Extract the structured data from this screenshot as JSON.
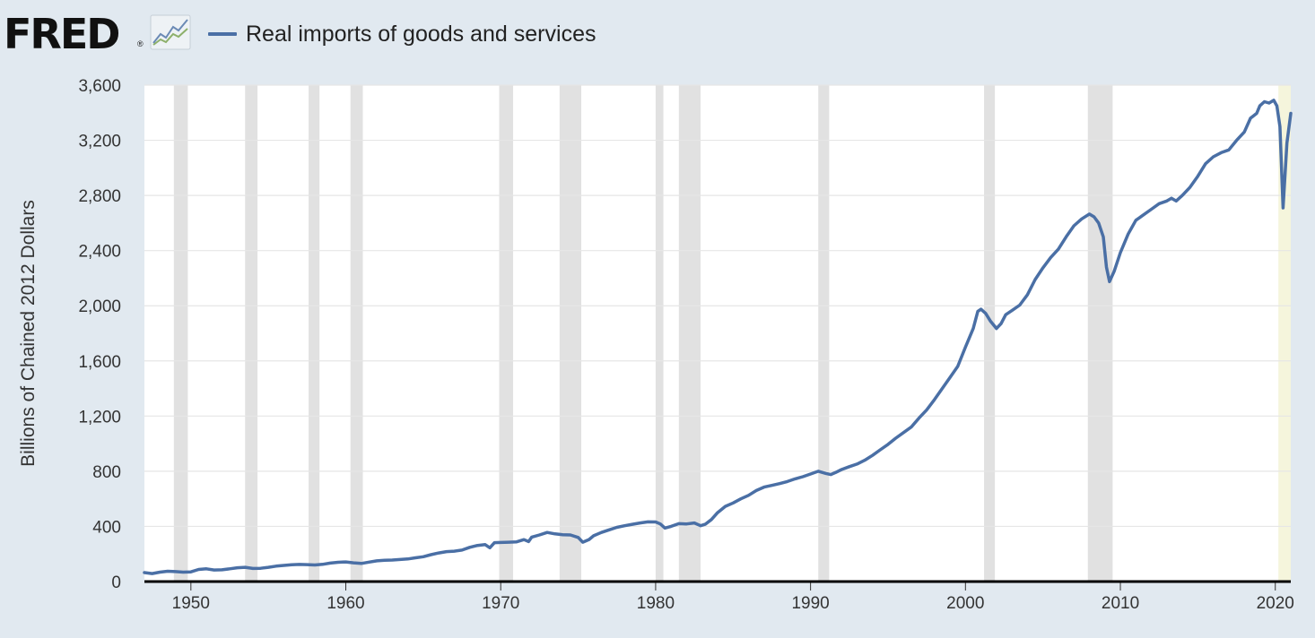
{
  "header": {
    "logo": "FRED",
    "logo_mark": "®"
  },
  "chart_data": {
    "type": "line",
    "title": "",
    "xlabel": "",
    "ylabel": "Billions of Chained 2012 Dollars",
    "xlim": [
      1947,
      2021
    ],
    "ylim": [
      0,
      3600
    ],
    "grid": true,
    "legend_position": "top-left",
    "y_ticks": [
      0,
      400,
      800,
      1200,
      1600,
      2000,
      2400,
      2800,
      3200,
      3600
    ],
    "y_tick_labels": [
      "0",
      "400",
      "800",
      "1,200",
      "1,600",
      "2,000",
      "2,400",
      "2,800",
      "3,200",
      "3,600"
    ],
    "x_ticks": [
      1950,
      1960,
      1970,
      1980,
      1990,
      2000,
      2010,
      2020
    ],
    "x_tick_labels": [
      "1950",
      "1960",
      "1970",
      "1980",
      "1990",
      "2000",
      "2010",
      "2020"
    ],
    "series": [
      {
        "name": "Real imports of goods and services",
        "color": "#4a6fa5",
        "points": [
          [
            1947.0,
            65
          ],
          [
            1947.5,
            58
          ],
          [
            1948.0,
            68
          ],
          [
            1948.5,
            75
          ],
          [
            1949.0,
            72
          ],
          [
            1949.5,
            68
          ],
          [
            1950.0,
            70
          ],
          [
            1950.5,
            88
          ],
          [
            1951.0,
            92
          ],
          [
            1951.5,
            84
          ],
          [
            1952.0,
            85
          ],
          [
            1952.5,
            92
          ],
          [
            1953.0,
            100
          ],
          [
            1953.5,
            103
          ],
          [
            1954.0,
            95
          ],
          [
            1954.5,
            96
          ],
          [
            1955.0,
            103
          ],
          [
            1955.5,
            112
          ],
          [
            1956.0,
            117
          ],
          [
            1956.5,
            122
          ],
          [
            1957.0,
            124
          ],
          [
            1957.5,
            123
          ],
          [
            1958.0,
            120
          ],
          [
            1958.5,
            125
          ],
          [
            1959.0,
            134
          ],
          [
            1959.5,
            140
          ],
          [
            1960.0,
            142
          ],
          [
            1960.5,
            136
          ],
          [
            1961.0,
            131
          ],
          [
            1961.5,
            141
          ],
          [
            1962.0,
            150
          ],
          [
            1962.5,
            154
          ],
          [
            1963.0,
            156
          ],
          [
            1963.5,
            160
          ],
          [
            1964.0,
            164
          ],
          [
            1964.5,
            172
          ],
          [
            1965.0,
            180
          ],
          [
            1965.5,
            195
          ],
          [
            1966.0,
            207
          ],
          [
            1966.5,
            217
          ],
          [
            1967.0,
            220
          ],
          [
            1967.5,
            228
          ],
          [
            1968.0,
            248
          ],
          [
            1968.5,
            262
          ],
          [
            1969.0,
            268
          ],
          [
            1969.3,
            245
          ],
          [
            1969.6,
            282
          ],
          [
            1970.0,
            283
          ],
          [
            1970.5,
            285
          ],
          [
            1971.0,
            287
          ],
          [
            1971.5,
            304
          ],
          [
            1971.8,
            290
          ],
          [
            1972.0,
            322
          ],
          [
            1972.5,
            338
          ],
          [
            1973.0,
            356
          ],
          [
            1973.5,
            346
          ],
          [
            1974.0,
            340
          ],
          [
            1974.5,
            338
          ],
          [
            1975.0,
            320
          ],
          [
            1975.3,
            285
          ],
          [
            1975.7,
            305
          ],
          [
            1976.0,
            332
          ],
          [
            1976.5,
            356
          ],
          [
            1977.0,
            375
          ],
          [
            1977.5,
            393
          ],
          [
            1978.0,
            405
          ],
          [
            1978.5,
            415
          ],
          [
            1979.0,
            425
          ],
          [
            1979.5,
            433
          ],
          [
            1980.0,
            432
          ],
          [
            1980.3,
            418
          ],
          [
            1980.6,
            388
          ],
          [
            1981.0,
            400
          ],
          [
            1981.5,
            420
          ],
          [
            1982.0,
            418
          ],
          [
            1982.5,
            425
          ],
          [
            1982.9,
            405
          ],
          [
            1983.2,
            415
          ],
          [
            1983.6,
            450
          ],
          [
            1984.0,
            500
          ],
          [
            1984.5,
            545
          ],
          [
            1985.0,
            570
          ],
          [
            1985.5,
            600
          ],
          [
            1986.0,
            625
          ],
          [
            1986.5,
            660
          ],
          [
            1987.0,
            685
          ],
          [
            1987.5,
            697
          ],
          [
            1988.0,
            710
          ],
          [
            1988.5,
            725
          ],
          [
            1989.0,
            745
          ],
          [
            1989.5,
            760
          ],
          [
            1990.0,
            780
          ],
          [
            1990.5,
            800
          ],
          [
            1991.0,
            784
          ],
          [
            1991.3,
            776
          ],
          [
            1991.6,
            790
          ],
          [
            1992.0,
            812
          ],
          [
            1992.5,
            833
          ],
          [
            1993.0,
            852
          ],
          [
            1993.5,
            880
          ],
          [
            1994.0,
            915
          ],
          [
            1994.5,
            955
          ],
          [
            1995.0,
            995
          ],
          [
            1995.5,
            1040
          ],
          [
            1996.0,
            1080
          ],
          [
            1996.5,
            1120
          ],
          [
            1997.0,
            1185
          ],
          [
            1997.5,
            1245
          ],
          [
            1998.0,
            1320
          ],
          [
            1998.5,
            1400
          ],
          [
            1999.0,
            1480
          ],
          [
            1999.5,
            1560
          ],
          [
            2000.0,
            1700
          ],
          [
            2000.5,
            1835
          ],
          [
            2000.8,
            1960
          ],
          [
            2001.0,
            1975
          ],
          [
            2001.3,
            1945
          ],
          [
            2001.6,
            1890
          ],
          [
            2002.0,
            1835
          ],
          [
            2002.3,
            1870
          ],
          [
            2002.6,
            1935
          ],
          [
            2003.0,
            1965
          ],
          [
            2003.5,
            2005
          ],
          [
            2004.0,
            2080
          ],
          [
            2004.5,
            2190
          ],
          [
            2005.0,
            2275
          ],
          [
            2005.5,
            2350
          ],
          [
            2006.0,
            2410
          ],
          [
            2006.5,
            2500
          ],
          [
            2007.0,
            2580
          ],
          [
            2007.5,
            2630
          ],
          [
            2008.0,
            2665
          ],
          [
            2008.3,
            2645
          ],
          [
            2008.6,
            2600
          ],
          [
            2008.9,
            2500
          ],
          [
            2009.1,
            2280
          ],
          [
            2009.3,
            2175
          ],
          [
            2009.6,
            2250
          ],
          [
            2010.0,
            2385
          ],
          [
            2010.5,
            2520
          ],
          [
            2011.0,
            2620
          ],
          [
            2011.5,
            2660
          ],
          [
            2012.0,
            2700
          ],
          [
            2012.5,
            2740
          ],
          [
            2013.0,
            2760
          ],
          [
            2013.3,
            2780
          ],
          [
            2013.6,
            2760
          ],
          [
            2014.0,
            2800
          ],
          [
            2014.5,
            2860
          ],
          [
            2015.0,
            2940
          ],
          [
            2015.5,
            3030
          ],
          [
            2016.0,
            3080
          ],
          [
            2016.5,
            3110
          ],
          [
            2017.0,
            3130
          ],
          [
            2017.5,
            3200
          ],
          [
            2018.0,
            3260
          ],
          [
            2018.4,
            3360
          ],
          [
            2018.8,
            3395
          ],
          [
            2019.0,
            3450
          ],
          [
            2019.3,
            3480
          ],
          [
            2019.6,
            3470
          ],
          [
            2019.9,
            3490
          ],
          [
            2020.1,
            3450
          ],
          [
            2020.3,
            3300
          ],
          [
            2020.5,
            2710
          ],
          [
            2020.75,
            3180
          ],
          [
            2021.0,
            3395
          ]
        ]
      }
    ],
    "recessions": [
      [
        1948.9,
        1949.8
      ],
      [
        1953.5,
        1954.3
      ],
      [
        1957.6,
        1958.3
      ],
      [
        1960.3,
        1961.1
      ],
      [
        1969.9,
        1970.8
      ],
      [
        1973.8,
        1975.2
      ],
      [
        1980.0,
        1980.5
      ],
      [
        1981.5,
        1982.9
      ],
      [
        1990.5,
        1991.2
      ],
      [
        2001.2,
        2001.9
      ],
      [
        2007.9,
        2009.5
      ]
    ],
    "highlight": [
      2020.2,
      2021.0
    ]
  }
}
